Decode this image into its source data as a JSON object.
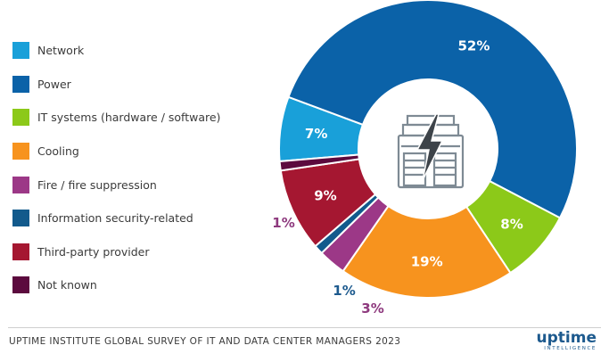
{
  "chart_data": {
    "type": "pie",
    "variant": "donut",
    "categories": [
      "Network",
      "Power",
      "IT systems (hardware / software)",
      "Cooling",
      "Fire / fire suppression",
      "Information security-related",
      "Third-party provider",
      "Not known"
    ],
    "values": [
      7,
      52,
      8,
      19,
      3,
      1,
      9,
      1
    ],
    "labels": [
      "7%",
      "52%",
      "8%",
      "19%",
      "3%",
      "1%",
      "9%",
      "1%"
    ],
    "colors": [
      "#19a0d9",
      "#0b62a8",
      "#8cc919",
      "#f7931e",
      "#9c3887",
      "#125a8c",
      "#a51731",
      "#5c0a3e"
    ],
    "label_colors": [
      "#ffffff",
      "#ffffff",
      "#ffffff",
      "#ffffff",
      "#8e3a7e",
      "#1d5a8e",
      "#ffffff",
      "#8e3a7e"
    ],
    "legend_placement": "left",
    "center_icon": "building-power-icon"
  },
  "footer": {
    "source": "UPTIME INSTITUTE GLOBAL SURVEY OF IT AND DATA CENTER MANAGERS 2023",
    "logo_word": "uptime",
    "logo_sub": "INTELLIGENCE"
  }
}
